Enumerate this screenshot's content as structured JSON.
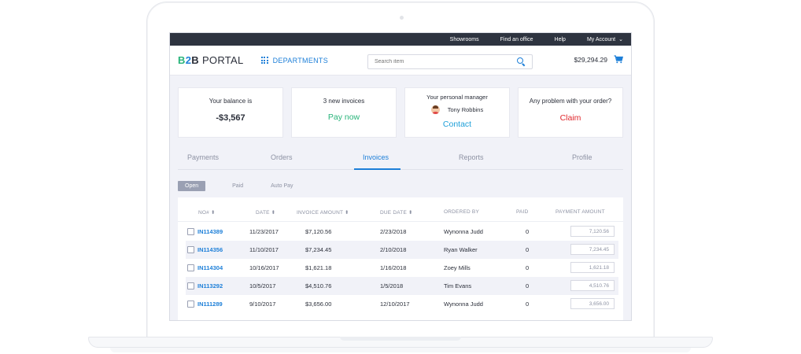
{
  "topbar": {
    "showrooms": "Showrooms",
    "find_office": "Find an office",
    "help": "Help",
    "my_account": "My Account"
  },
  "header": {
    "logo_b": "B",
    "logo_2": "2",
    "logo_b2": "B",
    "logo_portal": "PORTAL",
    "departments": "DEPARTMENTS",
    "search_placeholder": "Search item",
    "cart_total": "$29,294.29"
  },
  "cards": {
    "balance_label": "Your balance is",
    "balance_value": "-$3,567",
    "invoices_label": "3 new invoices",
    "pay_now": "Pay now",
    "manager_label": "Your personal manager",
    "manager_name": "Tony Robbins",
    "contact": "Contact",
    "problem_label": "Any problem with your order?",
    "claim": "Claim"
  },
  "tabs": [
    "Payments",
    "Orders",
    "Invoices",
    "Reports",
    "Profile"
  ],
  "active_tab": "Invoices",
  "subtabs": [
    "Open",
    "Paid",
    "Auto Pay"
  ],
  "table": {
    "headers": [
      "NO# ⬍",
      "DATE ⬍",
      "INVOICE AMOUNT ⬍",
      "DUE DATE ⬍",
      "ORDERED BY",
      "PAID",
      "PAYMENT AMOUNT"
    ],
    "rows": [
      {
        "no": "IN114389",
        "date": "11/23/2017",
        "amount": "$7,120.56",
        "due": "2/23/2018",
        "by": "Wynonna Judd",
        "paid": "0",
        "payment": "7,120.56"
      },
      {
        "no": "IN114356",
        "date": "11/10/2017",
        "amount": "$7,234.45",
        "due": "2/10/2018",
        "by": "Ryan Walker",
        "paid": "0",
        "payment": "7,234.45"
      },
      {
        "no": "IN114304",
        "date": "10/16/2017",
        "amount": "$1,621.18",
        "due": "1/16/2018",
        "by": "Zoey Mills",
        "paid": "0",
        "payment": "1,621.18"
      },
      {
        "no": "IN113292",
        "date": "10/5/2017",
        "amount": "$4,510.76",
        "due": "1/5/2018",
        "by": "Tim Evans",
        "paid": "0",
        "payment": "4,510.76"
      },
      {
        "no": "IN111289",
        "date": "9/10/2017",
        "amount": "$3,656.00",
        "due": "12/10/2017",
        "by": "Wynonna Judd",
        "paid": "0",
        "payment": "3,656.00"
      }
    ]
  },
  "colors": {
    "accent": "#1d7fd8",
    "green": "#28b47a",
    "red": "#e0262b",
    "topbar": "#2e3440"
  }
}
